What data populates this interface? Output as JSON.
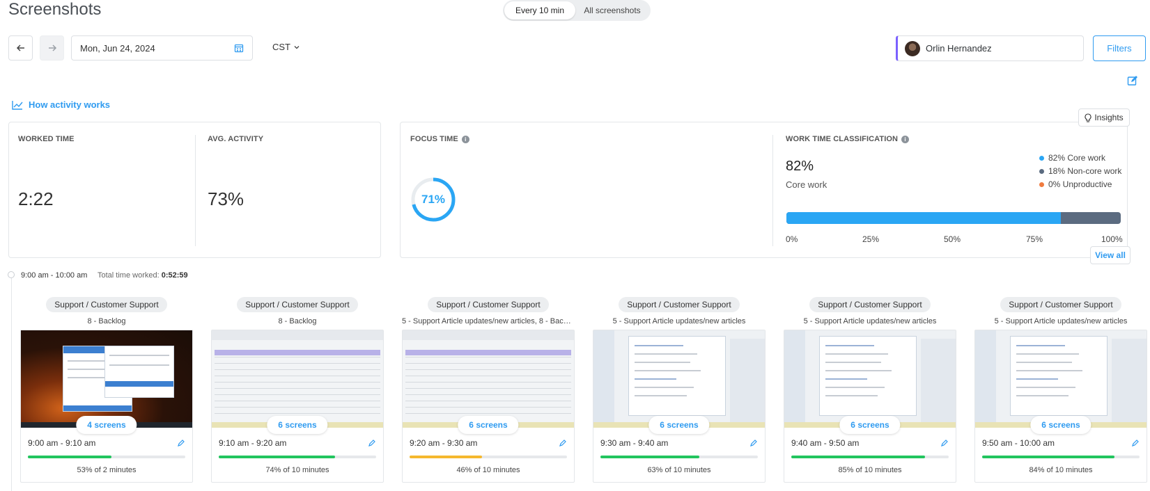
{
  "header": {
    "title": "Screenshots",
    "view_toggle": {
      "active": "Every 10 min",
      "inactive": "All screenshots"
    }
  },
  "toolbar": {
    "date": "Mon, Jun 24, 2024",
    "timezone": "CST",
    "user": "Orlin Hernandez",
    "filters_label": "Filters"
  },
  "how_activity_label": "How activity works",
  "stats": {
    "worked_time_label": "WORKED TIME",
    "worked_time_value": "2:22",
    "avg_activity_label": "AVG. ACTIVITY",
    "avg_activity_value": "73%",
    "focus_time_label": "FOCUS TIME",
    "focus_time_value": "71%",
    "focus_time_fraction": 0.71,
    "work_class_label": "WORK TIME CLASSIFICATION",
    "core_pct": "82%",
    "core_label": "Core work",
    "legend": [
      {
        "label": "82% Core work",
        "color": "#2aa6f4"
      },
      {
        "label": "18% Non-core work",
        "color": "#5b6b80"
      },
      {
        "label": "0% Unproductive",
        "color": "#f07b3f"
      }
    ],
    "core_fraction": 0.82,
    "ticks": [
      "0%",
      "25%",
      "50%",
      "75%",
      "100%"
    ],
    "insights_label": "Insights",
    "view_all_label": "View all"
  },
  "timeline": {
    "range": "9:00 am - 10:00 am",
    "total_label": "Total time worked:",
    "total_value": "0:52:59"
  },
  "shots": [
    {
      "project": "Support / Customer Support",
      "task": "8 - Backlog",
      "screens": "4 screens",
      "time": "9:00 am - 9:10 am",
      "activity": 0.53,
      "activity_text": "53% of 2 minutes",
      "color": "#22c55e",
      "thumb": "fire"
    },
    {
      "project": "Support / Customer Support",
      "task": "8 - Backlog",
      "screens": "6 screens",
      "time": "9:10 am - 9:20 am",
      "activity": 0.74,
      "activity_text": "74% of 10 minutes",
      "color": "#22c55e",
      "thumb": "sheet"
    },
    {
      "project": "Support / Customer Support",
      "task": "5 - Support Article updates/new articles, 8 - Backl...",
      "screens": "6 screens",
      "time": "9:20 am - 9:30 am",
      "activity": 0.46,
      "activity_text": "46% of 10 minutes",
      "color": "#f5b82e",
      "thumb": "sheet"
    },
    {
      "project": "Support / Customer Support",
      "task": "5 - Support Article updates/new articles",
      "screens": "6 screens",
      "time": "9:30 am - 9:40 am",
      "activity": 0.63,
      "activity_text": "63% of 10 minutes",
      "color": "#22c55e",
      "thumb": "chat"
    },
    {
      "project": "Support / Customer Support",
      "task": "5 - Support Article updates/new articles",
      "screens": "6 screens",
      "time": "9:40 am - 9:50 am",
      "activity": 0.85,
      "activity_text": "85% of 10 minutes",
      "color": "#22c55e",
      "thumb": "chat"
    },
    {
      "project": "Support / Customer Support",
      "task": "5 - Support Article updates/new articles",
      "screens": "6 screens",
      "time": "9:50 am - 10:00 am",
      "activity": 0.84,
      "activity_text": "84% of 10 minutes",
      "color": "#22c55e",
      "thumb": "chat"
    }
  ]
}
